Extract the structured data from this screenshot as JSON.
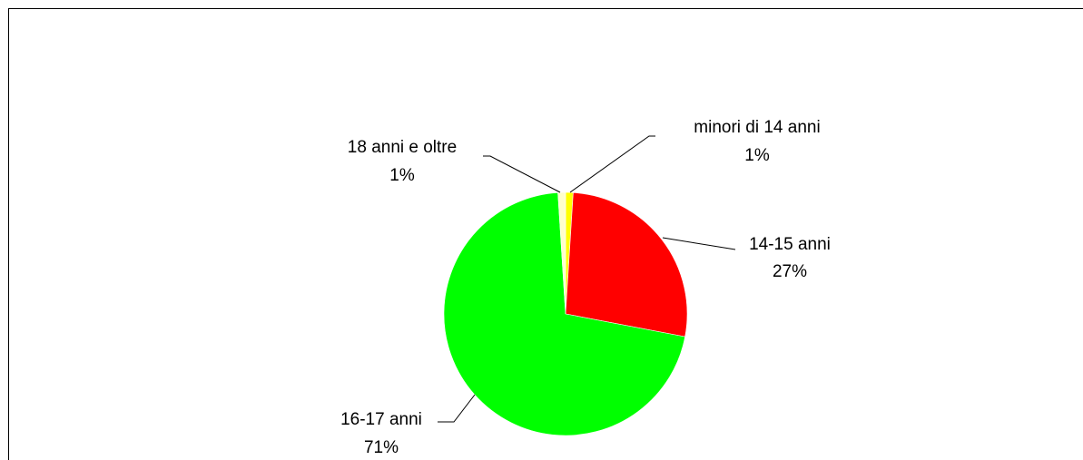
{
  "chart_data": {
    "type": "pie",
    "categories": [
      "minori di 14 anni",
      "14-15 anni",
      "16-17 anni",
      "18 anni e oltre"
    ],
    "values": [
      1,
      27,
      71,
      1
    ],
    "value_labels": [
      "1%",
      "27%",
      "71%",
      "1%"
    ],
    "colors": [
      "#ffff00",
      "#ff0000",
      "#00ff00",
      "#ffffcc"
    ]
  }
}
